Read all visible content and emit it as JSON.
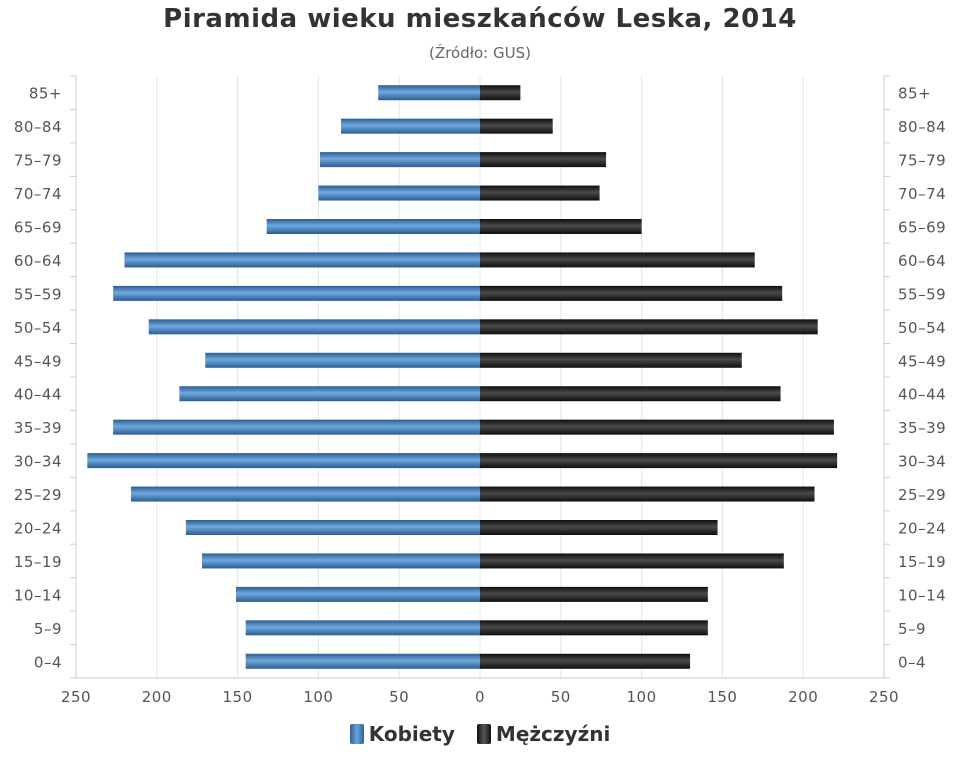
{
  "chart_data": {
    "type": "bar",
    "orientation": "horizontal",
    "variant": "population-pyramid",
    "title": "Piramida wieku mieszkańców Leska, 2014",
    "subtitle": "(Źródło: GUS)",
    "categories": [
      "0–4",
      "5–9",
      "10–14",
      "15–19",
      "20–24",
      "25–29",
      "30–34",
      "35–39",
      "40–44",
      "45–49",
      "50–54",
      "55–59",
      "60–64",
      "65–69",
      "70–74",
      "75–79",
      "80–84",
      "85+"
    ],
    "series": [
      {
        "name": "Kobiety",
        "side": "left",
        "color": "#3b78b8",
        "values": [
          145,
          145,
          151,
          172,
          182,
          216,
          243,
          227,
          186,
          170,
          205,
          227,
          220,
          132,
          100,
          99,
          86,
          63
        ]
      },
      {
        "name": "Mężczyźni",
        "side": "right",
        "color": "#1a1a1a",
        "values": [
          130,
          141,
          141,
          188,
          147,
          207,
          221,
          219,
          186,
          162,
          209,
          187,
          170,
          100,
          74,
          78,
          45,
          25
        ]
      }
    ],
    "x_ticks": [
      "250",
      "200",
      "150",
      "100",
      "50",
      "0",
      "50",
      "100",
      "150",
      "200",
      "250"
    ],
    "xlim": [
      -250,
      250
    ],
    "grid": true,
    "legend_position": "bottom-center"
  }
}
